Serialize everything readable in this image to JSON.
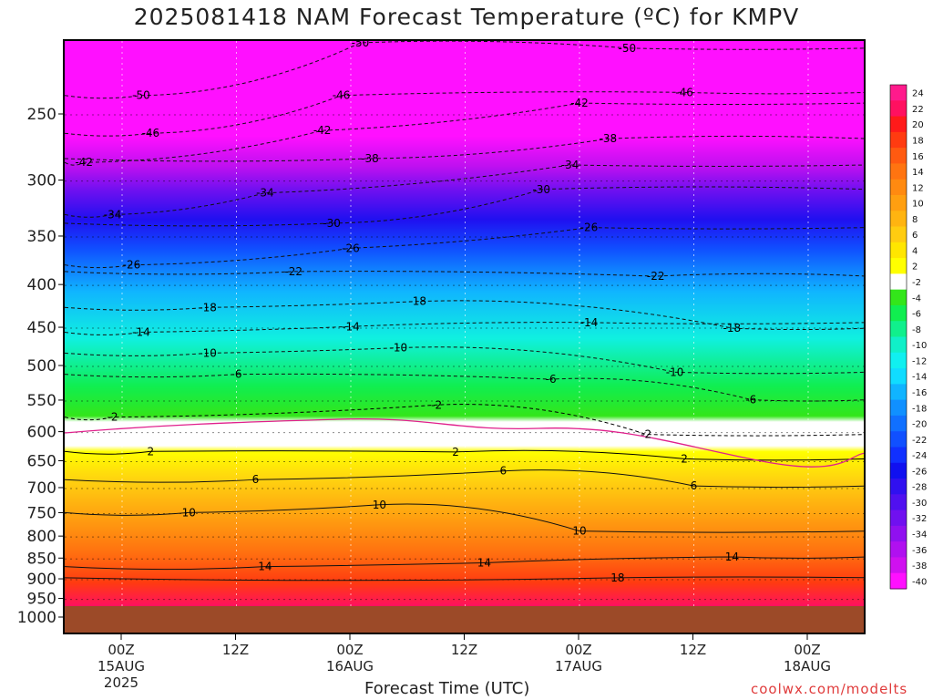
{
  "title": "2025081418 NAM Forecast Temperature (ºC) for KMPV",
  "footer": "coolwx.com/modelts",
  "chart_data": {
    "type": "heatmap",
    "title": "2025081418 NAM Forecast Temperature (ºC) for KMPV",
    "xlabel": "Forecast Time (UTC)",
    "ylabel": "",
    "y_ticks": [
      250,
      300,
      350,
      400,
      450,
      500,
      550,
      600,
      650,
      700,
      750,
      800,
      850,
      900,
      950,
      1000
    ],
    "x_ticks": [
      {
        "label": "00Z",
        "sub": "15AUG",
        "sub2": "2025"
      },
      {
        "label": "12Z",
        "sub": "",
        "sub2": ""
      },
      {
        "label": "00Z",
        "sub": "16AUG",
        "sub2": ""
      },
      {
        "label": "12Z",
        "sub": "",
        "sub2": ""
      },
      {
        "label": "00Z",
        "sub": "17AUG",
        "sub2": ""
      },
      {
        "label": "12Z",
        "sub": "",
        "sub2": ""
      },
      {
        "label": "00Z",
        "sub": "18AUG",
        "sub2": ""
      }
    ],
    "colorbar": [
      {
        "label": "24",
        "color": "#ff1a8c"
      },
      {
        "label": "22",
        "color": "#ff1060"
      },
      {
        "label": "20",
        "color": "#ff1a1a"
      },
      {
        "label": "18",
        "color": "#ff3b10"
      },
      {
        "label": "16",
        "color": "#ff5a10"
      },
      {
        "label": "14",
        "color": "#ff7410"
      },
      {
        "label": "12",
        "color": "#ff8a10"
      },
      {
        "label": "10",
        "color": "#ff9f10"
      },
      {
        "label": "8",
        "color": "#ffb410"
      },
      {
        "label": "6",
        "color": "#ffcc10"
      },
      {
        "label": "4",
        "color": "#ffe600"
      },
      {
        "label": "2",
        "color": "#ffff00"
      },
      {
        "label": "-2",
        "color": "#ffffff"
      },
      {
        "label": "-4",
        "color": "#33e61a"
      },
      {
        "label": "-6",
        "color": "#10ee50"
      },
      {
        "label": "-8",
        "color": "#10f08c"
      },
      {
        "label": "-10",
        "color": "#10f0c8"
      },
      {
        "label": "-12",
        "color": "#10f0f0"
      },
      {
        "label": "-14",
        "color": "#10dcff"
      },
      {
        "label": "-16",
        "color": "#10b4ff"
      },
      {
        "label": "-18",
        "color": "#1090ff"
      },
      {
        "label": "-20",
        "color": "#1070ff"
      },
      {
        "label": "-22",
        "color": "#1050ff"
      },
      {
        "label": "-24",
        "color": "#1030ff"
      },
      {
        "label": "-26",
        "color": "#1010f0"
      },
      {
        "label": "-28",
        "color": "#3010f0"
      },
      {
        "label": "-30",
        "color": "#5010f0"
      },
      {
        "label": "-32",
        "color": "#7010f0"
      },
      {
        "label": "-34",
        "color": "#9010f0"
      },
      {
        "label": "-36",
        "color": "#b010f0"
      },
      {
        "label": "-38",
        "color": "#d010f0"
      },
      {
        "label": "-40",
        "color": "#ff10ff"
      }
    ],
    "contour_labels": [
      {
        "text": "-50",
        "time_h": 25,
        "hpa": 205
      },
      {
        "text": "-50",
        "time_h": 53,
        "hpa": 208
      },
      {
        "text": "-50",
        "time_h": 2,
        "hpa": 237
      },
      {
        "text": "-46",
        "time_h": 23,
        "hpa": 237
      },
      {
        "text": "-42",
        "time_h": 48,
        "hpa": 242
      },
      {
        "text": "-46",
        "time_h": 59,
        "hpa": 235
      },
      {
        "text": "-46",
        "time_h": 3,
        "hpa": 263
      },
      {
        "text": "-42",
        "time_h": 21,
        "hpa": 261
      },
      {
        "text": "-38",
        "time_h": 51,
        "hpa": 267
      },
      {
        "text": "-42",
        "time_h": -4,
        "hpa": 285
      },
      {
        "text": "-38",
        "time_h": 26,
        "hpa": 282
      },
      {
        "text": "-34",
        "time_h": 47,
        "hpa": 287
      },
      {
        "text": "-34",
        "time_h": 15,
        "hpa": 310
      },
      {
        "text": "-30",
        "time_h": 44,
        "hpa": 307
      },
      {
        "text": "-34",
        "time_h": -1,
        "hpa": 329
      },
      {
        "text": "-30",
        "time_h": 22,
        "hpa": 337
      },
      {
        "text": "-26",
        "time_h": 49,
        "hpa": 341
      },
      {
        "text": "-26",
        "time_h": 24,
        "hpa": 361
      },
      {
        "text": "-26",
        "time_h": 1,
        "hpa": 378
      },
      {
        "text": "-22",
        "time_h": 18,
        "hpa": 385
      },
      {
        "text": "-22",
        "time_h": 56,
        "hpa": 390
      },
      {
        "text": "-18",
        "time_h": 9,
        "hpa": 425
      },
      {
        "text": "-18",
        "time_h": 31,
        "hpa": 418
      },
      {
        "text": "-14",
        "time_h": 2,
        "hpa": 455
      },
      {
        "text": "-14",
        "time_h": 24,
        "hpa": 448
      },
      {
        "text": "-14",
        "time_h": 49,
        "hpa": 443
      },
      {
        "text": "-18",
        "time_h": 64,
        "hpa": 450
      },
      {
        "text": "-10",
        "time_h": 9,
        "hpa": 482
      },
      {
        "text": "-10",
        "time_h": 29,
        "hpa": 475
      },
      {
        "text": "-6",
        "time_h": 12,
        "hpa": 511
      },
      {
        "text": "-6",
        "time_h": 45,
        "hpa": 518
      },
      {
        "text": "-10",
        "time_h": 58,
        "hpa": 508
      },
      {
        "text": "-6",
        "time_h": 66,
        "hpa": 548
      },
      {
        "text": "-2",
        "time_h": 33,
        "hpa": 556
      },
      {
        "text": "-2",
        "time_h": -1,
        "hpa": 575
      },
      {
        "text": "-2",
        "time_h": 55,
        "hpa": 603
      },
      {
        "text": "2",
        "time_h": 3,
        "hpa": 632
      },
      {
        "text": "2",
        "time_h": 35,
        "hpa": 633
      },
      {
        "text": "2",
        "time_h": 59,
        "hpa": 645
      },
      {
        "text": "6",
        "time_h": 14,
        "hpa": 683
      },
      {
        "text": "6",
        "time_h": 40,
        "hpa": 667
      },
      {
        "text": "6",
        "time_h": 60,
        "hpa": 695
      },
      {
        "text": "10",
        "time_h": 7,
        "hpa": 748
      },
      {
        "text": "10",
        "time_h": 27,
        "hpa": 732
      },
      {
        "text": "10",
        "time_h": 48,
        "hpa": 787
      },
      {
        "text": "14",
        "time_h": 15,
        "hpa": 868
      },
      {
        "text": "14",
        "time_h": 38,
        "hpa": 859
      },
      {
        "text": "14",
        "time_h": 64,
        "hpa": 845
      },
      {
        "text": "18",
        "time_h": 52,
        "hpa": 895
      }
    ]
  }
}
